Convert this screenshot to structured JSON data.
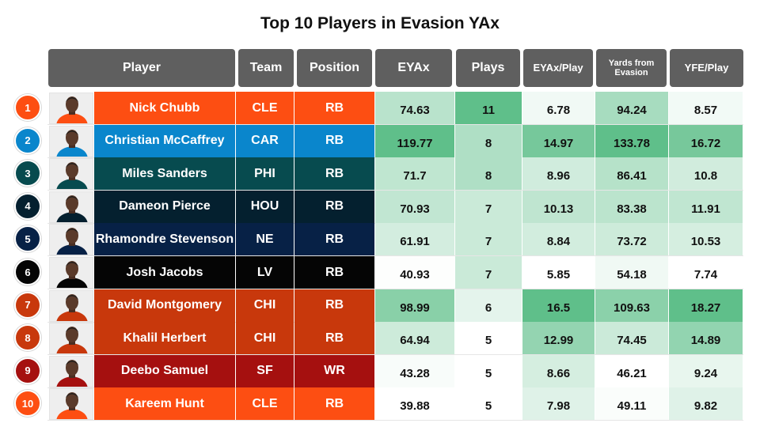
{
  "title": "Top 10 Players in Evasion YAx",
  "headers": {
    "player": "Player",
    "team": "Team",
    "position": "Position",
    "eyax": "EYAx",
    "plays": "Plays",
    "eyax_play": "EYAx/Play",
    "yards_from_evasion": "Yards from Evasion",
    "yfe_play": "YFE/Play"
  },
  "team_colors": {
    "CLE": "#fd4e12",
    "CAR": "#0a86cc",
    "PHI": "#074b4f",
    "HOU": "#04202f",
    "NE": "#072146",
    "LV": "#050505",
    "CHI": "#c8380c",
    "SF": "#a5100f"
  },
  "players": [
    {
      "rank": "1",
      "name": "Nick Chubb",
      "team": "CLE",
      "position": "RB",
      "eyax": "74.63",
      "plays": "11",
      "eyax_play": "6.78",
      "yfe": "94.24",
      "yfe_play": "8.57"
    },
    {
      "rank": "2",
      "name": "Christian McCaffrey",
      "team": "CAR",
      "position": "RB",
      "eyax": "119.77",
      "plays": "8",
      "eyax_play": "14.97",
      "yfe": "133.78",
      "yfe_play": "16.72"
    },
    {
      "rank": "3",
      "name": "Miles Sanders",
      "team": "PHI",
      "position": "RB",
      "eyax": "71.7",
      "plays": "8",
      "eyax_play": "8.96",
      "yfe": "86.41",
      "yfe_play": "10.8"
    },
    {
      "rank": "4",
      "name": "Dameon Pierce",
      "team": "HOU",
      "position": "RB",
      "eyax": "70.93",
      "plays": "7",
      "eyax_play": "10.13",
      "yfe": "83.38",
      "yfe_play": "11.91"
    },
    {
      "rank": "5",
      "name": "Rhamondre Stevenson",
      "team": "NE",
      "position": "RB",
      "eyax": "61.91",
      "plays": "7",
      "eyax_play": "8.84",
      "yfe": "73.72",
      "yfe_play": "10.53"
    },
    {
      "rank": "6",
      "name": "Josh Jacobs",
      "team": "LV",
      "position": "RB",
      "eyax": "40.93",
      "plays": "7",
      "eyax_play": "5.85",
      "yfe": "54.18",
      "yfe_play": "7.74"
    },
    {
      "rank": "7",
      "name": "David Montgomery",
      "team": "CHI",
      "position": "RB",
      "eyax": "98.99",
      "plays": "6",
      "eyax_play": "16.5",
      "yfe": "109.63",
      "yfe_play": "18.27"
    },
    {
      "rank": "8",
      "name": "Khalil Herbert",
      "team": "CHI",
      "position": "RB",
      "eyax": "64.94",
      "plays": "5",
      "eyax_play": "12.99",
      "yfe": "74.45",
      "yfe_play": "14.89"
    },
    {
      "rank": "9",
      "name": "Deebo Samuel",
      "team": "SF",
      "position": "WR",
      "eyax": "43.28",
      "plays": "5",
      "eyax_play": "8.66",
      "yfe": "46.21",
      "yfe_play": "9.24"
    },
    {
      "rank": "10",
      "name": "Kareem Hunt",
      "team": "CLE",
      "position": "RB",
      "eyax": "39.88",
      "plays": "5",
      "eyax_play": "7.98",
      "yfe": "49.11",
      "yfe_play": "9.82"
    }
  ],
  "chart_data": {
    "type": "table",
    "title": "Top 10 Players in Evasion YAx",
    "columns": [
      "Player",
      "Team",
      "Position",
      "EYAx",
      "Plays",
      "EYAx/Play",
      "Yards from Evasion",
      "YFE/Play"
    ],
    "rows": [
      [
        "Nick Chubb",
        "CLE",
        "RB",
        74.63,
        11,
        6.78,
        94.24,
        8.57
      ],
      [
        "Christian McCaffrey",
        "CAR",
        "RB",
        119.77,
        8,
        14.97,
        133.78,
        16.72
      ],
      [
        "Miles Sanders",
        "PHI",
        "RB",
        71.7,
        8,
        8.96,
        86.41,
        10.8
      ],
      [
        "Dameon Pierce",
        "HOU",
        "RB",
        70.93,
        7,
        10.13,
        83.38,
        11.91
      ],
      [
        "Rhamondre Stevenson",
        "NE",
        "RB",
        61.91,
        7,
        8.84,
        73.72,
        10.53
      ],
      [
        "Josh Jacobs",
        "LV",
        "RB",
        40.93,
        7,
        5.85,
        54.18,
        7.74
      ],
      [
        "David Montgomery",
        "CHI",
        "RB",
        98.99,
        6,
        16.5,
        109.63,
        18.27
      ],
      [
        "Khalil Herbert",
        "CHI",
        "RB",
        64.94,
        5,
        12.99,
        74.45,
        14.89
      ],
      [
        "Deebo Samuel",
        "SF",
        "WR",
        43.28,
        5,
        8.66,
        46.21,
        9.24
      ],
      [
        "Kareem Hunt",
        "CLE",
        "RB",
        39.88,
        5,
        7.98,
        49.11,
        9.82
      ]
    ],
    "heatmap_color_low": "#ffffff",
    "heatmap_color_high": "#5fbf8a"
  }
}
